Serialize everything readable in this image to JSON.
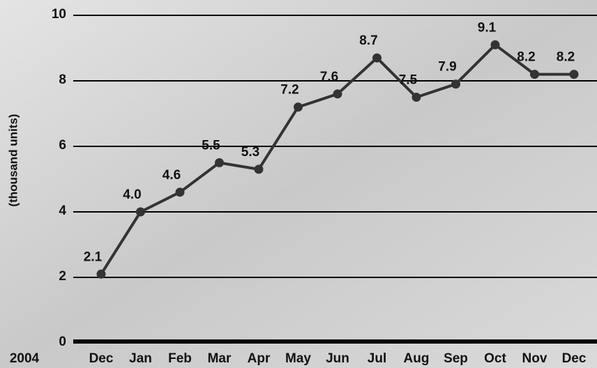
{
  "chart_data": {
    "type": "line",
    "y_label": "(thousand units)",
    "start_year": "2004",
    "categories": [
      "Dec",
      "Jan",
      "Feb",
      "Mar",
      "Apr",
      "May",
      "Jun",
      "Jul",
      "Aug",
      "Sep",
      "Oct",
      "Nov",
      "Dec"
    ],
    "values": [
      2.1,
      4.0,
      4.6,
      5.5,
      5.3,
      7.2,
      7.6,
      8.7,
      7.5,
      7.9,
      9.1,
      8.2,
      8.2
    ],
    "value_labels": [
      "2.1",
      "4.0",
      "4.6",
      "5.5",
      "5.3",
      "7.2",
      "7.6",
      "8.7",
      "7.5",
      "7.9",
      "9.1",
      "8.2",
      "8.2"
    ],
    "color": "#333333",
    "ylim": [
      0,
      10
    ],
    "yticks": [
      0,
      2,
      4,
      6,
      8,
      10
    ],
    "grid": true
  }
}
